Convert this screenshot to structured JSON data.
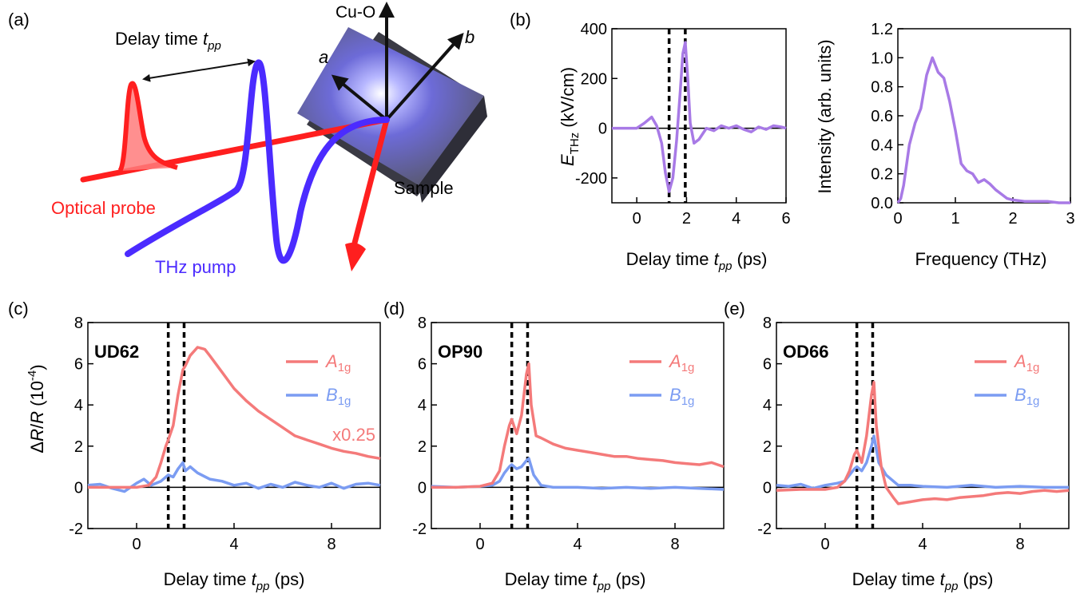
{
  "panel_labels": {
    "a": "(a)",
    "b": "(b)",
    "c": "(c)",
    "d": "(d)",
    "e": "(e)"
  },
  "schematic": {
    "delay_label": "Delay time ",
    "delay_italic": "t",
    "delay_sub": "pp",
    "axis_cuo": "Cu-O",
    "axis_a": "a",
    "axis_b": "b",
    "sample": "Sample",
    "probe": "Optical probe",
    "pump": "THz pump"
  },
  "colors": {
    "probe": "#ff1f1f",
    "pump": "#4b2bff",
    "a1g": "#f47a7a",
    "b1g": "#7b9cf2",
    "thz": "#a87ae6"
  },
  "common": {
    "xlabel_prefix": "Delay time ",
    "xlabel_italic": "t",
    "xlabel_sub": "pp",
    "xlabel_suffix": " (ps)",
    "ylabel_delta": "Δ",
    "ylabel_r": "R",
    "ylabel_slash": "/",
    "ylabel_rest": " (10",
    "ylabel_exp": "-4",
    "ylabel_close": ")",
    "legend_a": "A",
    "legend_a_sub": "1g",
    "legend_b": "B",
    "legend_b_sub": "1g"
  },
  "chart_data": [
    {
      "id": "b-field",
      "type": "line",
      "ylabel_main": "E",
      "ylabel_sub": "THz",
      "ylabel_rest": " (kV/cm)",
      "xlim": [
        -1,
        6
      ],
      "ylim": [
        -300,
        400
      ],
      "xticks": [
        0,
        2,
        4,
        6
      ],
      "yticks": [
        -200,
        0,
        200,
        400
      ],
      "dashed_lines": [
        1.3,
        1.95
      ],
      "series": [
        {
          "name": "E_THz",
          "x": [
            -1,
            0,
            0.3,
            0.6,
            0.8,
            1.0,
            1.15,
            1.3,
            1.45,
            1.6,
            1.75,
            1.85,
            1.95,
            2.05,
            2.15,
            2.3,
            2.5,
            2.8,
            3.1,
            3.4,
            3.7,
            4.0,
            4.3,
            4.6,
            4.9,
            5.2,
            5.5,
            5.8,
            6.0
          ],
          "y": [
            0,
            0,
            20,
            45,
            10,
            -60,
            -180,
            -255,
            -200,
            -50,
            150,
            300,
            345,
            200,
            20,
            -60,
            -45,
            0,
            -10,
            10,
            0,
            10,
            -5,
            -15,
            5,
            -5,
            10,
            5,
            0
          ]
        }
      ]
    },
    {
      "id": "b-spectrum",
      "type": "line",
      "ylabel": "Intensity (arb. units)",
      "xlabel": "Frequency (THz)",
      "xlim": [
        0,
        3
      ],
      "ylim": [
        0,
        1.2
      ],
      "xticks": [
        0,
        1,
        2,
        3
      ],
      "yticks": [
        0.0,
        0.2,
        0.4,
        0.6,
        0.8,
        1.0,
        1.2
      ],
      "series": [
        {
          "name": "spectrum",
          "x": [
            0,
            0.05,
            0.1,
            0.2,
            0.3,
            0.4,
            0.5,
            0.6,
            0.7,
            0.8,
            0.9,
            1.0,
            1.1,
            1.2,
            1.3,
            1.4,
            1.5,
            1.6,
            1.7,
            1.8,
            1.9,
            2.0,
            2.2,
            2.4,
            2.6,
            2.8,
            3.0
          ],
          "y": [
            0,
            0.03,
            0.12,
            0.4,
            0.55,
            0.65,
            0.88,
            1.0,
            0.9,
            0.86,
            0.7,
            0.5,
            0.27,
            0.22,
            0.2,
            0.14,
            0.16,
            0.13,
            0.09,
            0.06,
            0.03,
            0.02,
            0.01,
            0.01,
            0.01,
            0.0,
            0.0
          ]
        }
      ]
    },
    {
      "id": "c",
      "type": "line",
      "sample": "UD62",
      "annotation": "x0.25",
      "xlim": [
        -2,
        10
      ],
      "ylim": [
        -2,
        8
      ],
      "xticks": [
        0,
        4,
        8
      ],
      "yticks": [
        -2,
        0,
        2,
        4,
        6,
        8
      ],
      "dashed_lines": [
        1.3,
        1.95
      ],
      "series": [
        {
          "name": "A1g",
          "x": [
            -2,
            -1,
            0,
            0.5,
            0.8,
            1.0,
            1.2,
            1.3,
            1.5,
            1.7,
            1.9,
            2.0,
            2.2,
            2.5,
            2.8,
            3.0,
            3.5,
            4.0,
            4.5,
            5.0,
            5.5,
            6.0,
            6.5,
            7.0,
            7.5,
            8.0,
            8.5,
            9.0,
            9.5,
            10.0
          ],
          "y": [
            0,
            0,
            0,
            0.1,
            0.5,
            1.2,
            2.0,
            2.3,
            3.0,
            4.5,
            5.7,
            5.9,
            6.4,
            6.8,
            6.7,
            6.4,
            5.6,
            4.8,
            4.2,
            3.7,
            3.3,
            2.9,
            2.5,
            2.3,
            2.1,
            1.9,
            1.75,
            1.65,
            1.5,
            1.4
          ]
        },
        {
          "name": "B1g",
          "x": [
            -2,
            -1.5,
            -1,
            -0.5,
            0,
            0.3,
            0.6,
            1.0,
            1.3,
            1.5,
            1.7,
            1.9,
            2.0,
            2.2,
            2.5,
            3.0,
            3.5,
            4.0,
            4.5,
            5.0,
            5.5,
            6.0,
            6.5,
            7.0,
            7.5,
            8.0,
            8.5,
            9.0,
            9.5,
            10.0
          ],
          "y": [
            0.1,
            0.15,
            -0.05,
            -0.2,
            0.2,
            0.4,
            0.1,
            0.3,
            0.6,
            0.5,
            0.9,
            1.2,
            0.8,
            1.0,
            0.7,
            0.4,
            0.3,
            0.1,
            0.2,
            -0.05,
            0.15,
            0.0,
            0.25,
            0.1,
            0.0,
            0.2,
            -0.05,
            0.15,
            0.2,
            0.1
          ]
        }
      ]
    },
    {
      "id": "d",
      "type": "line",
      "sample": "OP90",
      "xlim": [
        -2,
        10
      ],
      "ylim": [
        -2,
        8
      ],
      "xticks": [
        0,
        4,
        8
      ],
      "yticks": [
        -2,
        0,
        2,
        4,
        6,
        8
      ],
      "dashed_lines": [
        1.3,
        1.95
      ],
      "series": [
        {
          "name": "A1g",
          "x": [
            -2,
            -1,
            0,
            0.5,
            0.8,
            1.0,
            1.2,
            1.3,
            1.5,
            1.7,
            1.9,
            2.0,
            2.1,
            2.3,
            2.5,
            3.0,
            3.5,
            4.0,
            4.5,
            5.0,
            5.5,
            6.0,
            6.5,
            7.0,
            7.5,
            8.0,
            8.5,
            9.0,
            9.5,
            10.0
          ],
          "y": [
            0,
            0,
            0.05,
            0.2,
            0.8,
            2.0,
            3.0,
            3.3,
            2.6,
            3.5,
            5.5,
            6.0,
            4.0,
            2.5,
            2.4,
            2.1,
            1.9,
            1.8,
            1.7,
            1.6,
            1.5,
            1.5,
            1.4,
            1.35,
            1.3,
            1.2,
            1.15,
            1.1,
            1.2,
            1.0
          ]
        },
        {
          "name": "B1g",
          "x": [
            -2,
            -1,
            0,
            0.5,
            0.8,
            1.0,
            1.2,
            1.3,
            1.5,
            1.7,
            1.9,
            2.0,
            2.2,
            2.5,
            3.0,
            4.0,
            5.0,
            6.0,
            7.0,
            8.0,
            9.0,
            10.0
          ],
          "y": [
            0.05,
            0.0,
            0.05,
            0.1,
            0.3,
            0.7,
            1.0,
            1.1,
            0.9,
            1.0,
            1.3,
            1.4,
            0.6,
            0.1,
            0.0,
            0.0,
            -0.05,
            0.0,
            -0.05,
            0.0,
            -0.05,
            -0.1
          ]
        }
      ]
    },
    {
      "id": "e",
      "type": "line",
      "sample": "OD66",
      "xlim": [
        -2,
        10
      ],
      "ylim": [
        -2,
        8
      ],
      "xticks": [
        0,
        4,
        8
      ],
      "yticks": [
        -2,
        0,
        2,
        4,
        6,
        8
      ],
      "dashed_lines": [
        1.3,
        1.95
      ],
      "series": [
        {
          "name": "A1g",
          "x": [
            -2,
            -1,
            0,
            0.5,
            0.8,
            1.0,
            1.2,
            1.3,
            1.5,
            1.7,
            1.9,
            2.0,
            2.1,
            2.3,
            2.5,
            2.8,
            3.0,
            3.5,
            4.0,
            4.5,
            5.0,
            5.5,
            6.0,
            6.5,
            7.0,
            7.5,
            8.0,
            8.5,
            9.0,
            9.5,
            10.0
          ],
          "y": [
            -0.15,
            -0.1,
            -0.1,
            0.0,
            0.3,
            0.8,
            1.6,
            1.8,
            1.2,
            2.5,
            4.5,
            5.1,
            3.0,
            1.0,
            0.0,
            -0.5,
            -0.8,
            -0.7,
            -0.6,
            -0.55,
            -0.6,
            -0.5,
            -0.45,
            -0.4,
            -0.3,
            -0.25,
            -0.3,
            -0.2,
            -0.15,
            -0.2,
            -0.15
          ]
        },
        {
          "name": "B1g",
          "x": [
            -2,
            -1.5,
            -1,
            -0.5,
            0,
            0.5,
            0.8,
            1.0,
            1.2,
            1.3,
            1.5,
            1.7,
            1.9,
            2.0,
            2.2,
            2.5,
            3.0,
            3.5,
            4.0,
            5.0,
            6.0,
            7.0,
            8.0,
            9.0,
            10.0
          ],
          "y": [
            0.1,
            0.05,
            0.15,
            -0.05,
            0.1,
            0.2,
            0.3,
            0.6,
            0.9,
            1.0,
            0.8,
            1.2,
            2.0,
            2.5,
            1.2,
            0.6,
            0.1,
            0.1,
            0.05,
            0.0,
            0.1,
            0.0,
            0.05,
            0.0,
            0.0
          ]
        }
      ]
    }
  ]
}
